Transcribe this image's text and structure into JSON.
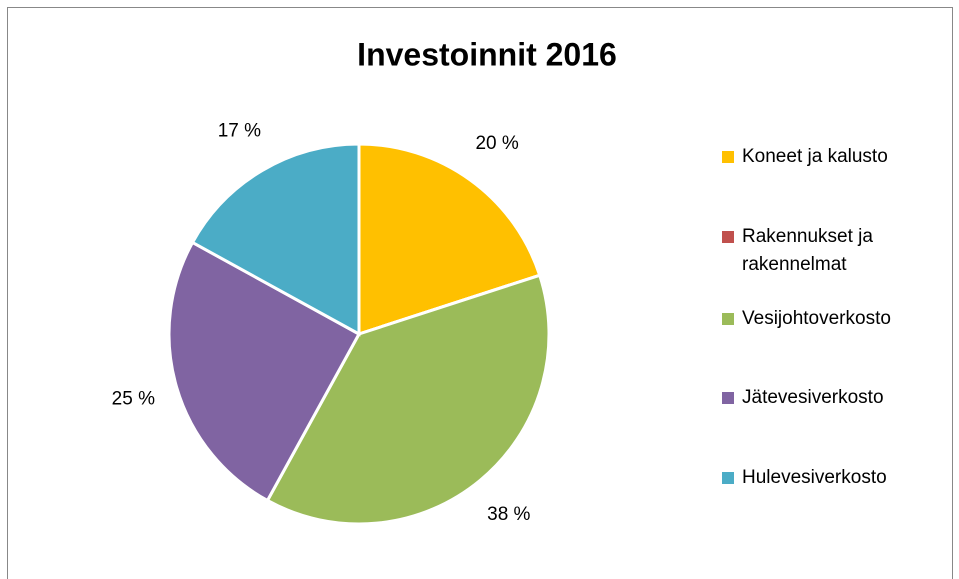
{
  "chart_data": {
    "type": "pie",
    "title": "Investoinnit 2016",
    "categories": [
      "Koneet ja kalusto",
      "Rakennukset ja rakennelmat",
      "Vesijohtoverkosto",
      "Jätevesiverkosto",
      "Hulevesiverkosto"
    ],
    "values": [
      20,
      0,
      38,
      25,
      17
    ],
    "value_labels": [
      "20 %",
      null,
      "38 %",
      "25 %",
      "17 %"
    ],
    "colors": [
      "#ffc000",
      "#c0504d",
      "#9bbb59",
      "#8064a2",
      "#4bacc6"
    ],
    "legend": "right"
  }
}
